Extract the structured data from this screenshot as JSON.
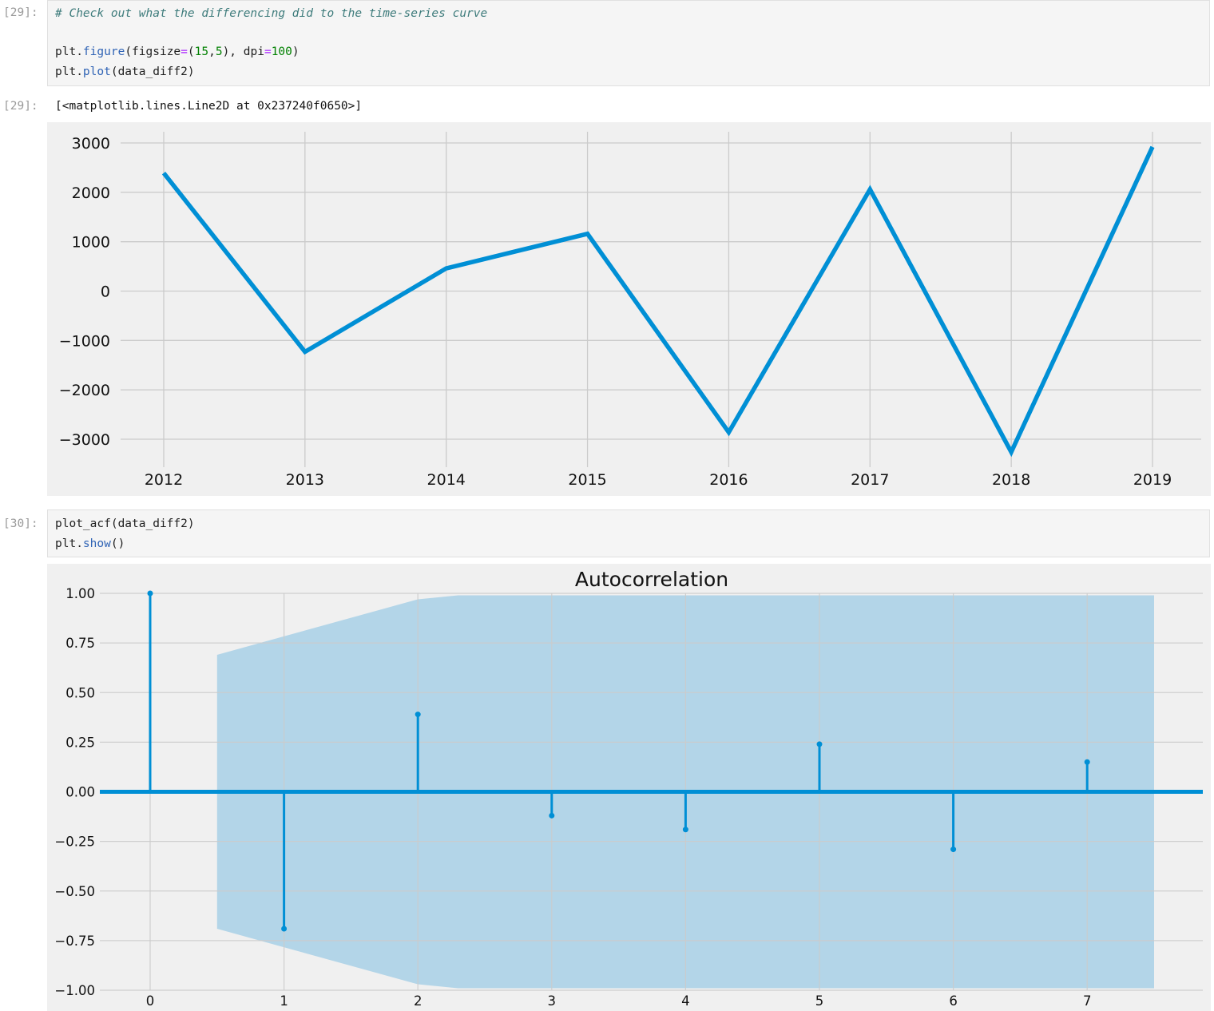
{
  "cells": {
    "c29": {
      "prompt_in": "[29]:",
      "comment": "# Check out what the differencing did to the time-series curve",
      "l1_obj": "plt.",
      "l1_fn": "figure",
      "l1_a": "(figsize",
      "l1_eq": "=",
      "l1_b": "(",
      "l1_n1": "15",
      "l1_c": ",",
      "l1_n2": "5",
      "l1_d": "), dpi",
      "l1_eq2": "=",
      "l1_n3": "100",
      "l1_e": ")",
      "l2_obj": "plt.",
      "l2_fn": "plot",
      "l2_rest": "(data_diff2)",
      "prompt_out": "[29]:",
      "output_text": "[<matplotlib.lines.Line2D at 0x237240f0650>]"
    },
    "c30": {
      "prompt_in": "[30]:",
      "l1": "plot_acf(data_diff2)",
      "l2_obj": "plt.",
      "l2_fn": "show",
      "l2_rest": "()"
    }
  },
  "colors": {
    "line": "#008fd5",
    "confint": "#b3d5e8",
    "axes_bg": "#f0f0f0",
    "grid": "#cbcbcb"
  },
  "chart_data": [
    {
      "type": "line",
      "title": "",
      "x": [
        "2012",
        "2013",
        "2014",
        "2015",
        "2016",
        "2017",
        "2018",
        "2019"
      ],
      "series": [
        {
          "values": [
            2390,
            -1230,
            460,
            1160,
            -2860,
            2060,
            -3260,
            2920
          ]
        }
      ],
      "xticks": [
        "2012",
        "2013",
        "2014",
        "2015",
        "2016",
        "2017",
        "2018",
        "2019"
      ],
      "yticks": [
        "3000",
        "2000",
        "1000",
        "0",
        "−1000",
        "−2000",
        "−3000"
      ],
      "ylim": [
        -3550,
        3300
      ],
      "grid": true
    },
    {
      "type": "bar",
      "title": "Autocorrelation",
      "lags": [
        0,
        1,
        2,
        3,
        4,
        5,
        6,
        7
      ],
      "values": [
        1.0,
        -0.69,
        0.39,
        -0.12,
        -0.19,
        0.24,
        -0.29,
        0.15
      ],
      "confint_upper": [
        0.69,
        0.97,
        0.99,
        0.99,
        0.99,
        0.99,
        0.99
      ],
      "confint_lags": [
        0.5,
        2.0,
        2.3,
        3,
        4,
        5,
        7.5
      ],
      "xticks": [
        "0",
        "1",
        "2",
        "3",
        "4",
        "5",
        "6",
        "7"
      ],
      "yticks": [
        "1.00",
        "0.75",
        "0.50",
        "0.25",
        "0.00",
        "−0.25",
        "−0.50",
        "−0.75",
        "−1.00"
      ],
      "ylim": [
        -1.0,
        1.0
      ],
      "grid": true
    }
  ]
}
